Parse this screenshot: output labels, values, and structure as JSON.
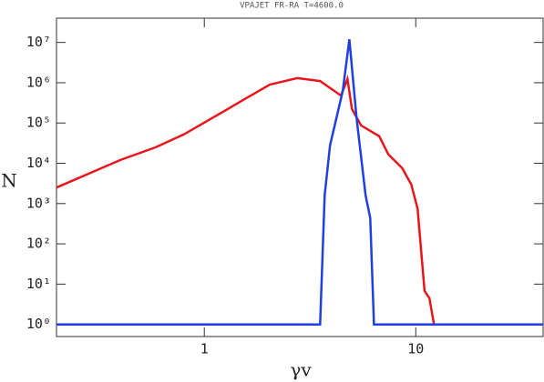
{
  "chart_data": {
    "type": "line",
    "title": "VPAJET FR-RA   T=4600.0",
    "x_label": "γv",
    "y_label": "N",
    "log_x": true,
    "log_y": true,
    "xlim": [
      0.2,
      40
    ],
    "ylim": [
      0.5,
      40000000
    ],
    "xticks": [
      1,
      10
    ],
    "yticks": [
      {
        "value": 1,
        "label": "10⁰"
      },
      {
        "value": 10,
        "label": "10¹"
      },
      {
        "value": 100,
        "label": "10²"
      },
      {
        "value": 1000,
        "label": "10³"
      },
      {
        "value": 10000,
        "label": "10⁴"
      },
      {
        "value": 100000,
        "label": "10⁵"
      },
      {
        "value": 1000000,
        "label": "10⁶"
      },
      {
        "value": 10000000,
        "label": "10⁷"
      }
    ],
    "series": [
      {
        "color": "#e8161b",
        "x": [
          0.2,
          0.4,
          0.59,
          0.8,
          1.13,
          1.59,
          2.04,
          2.75,
          3.53,
          4.43,
          4.75,
          4.99,
          5.51,
          6.72,
          7.42,
          8.62,
          9.52,
          10.2,
          11.0,
          11.6,
          12.2,
          40
        ],
        "values": [
          2500,
          12000,
          25000,
          52000,
          148000,
          420000,
          900000,
          1300000,
          1100000,
          480000,
          1240000,
          224000,
          87000,
          47000,
          16600,
          7600,
          3000,
          740,
          6.8,
          4.5,
          1,
          1
        ]
      },
      {
        "color": "#1f3fe0",
        "x": [
          0.2,
          3.53,
          3.71,
          3.93,
          4.52,
          4.85,
          5.25,
          5.79,
          6.09,
          6.34,
          40
        ],
        "values": [
          1,
          1,
          1600,
          28000,
          630000,
          12000000,
          133000,
          1600,
          440,
          1,
          1
        ]
      }
    ]
  }
}
